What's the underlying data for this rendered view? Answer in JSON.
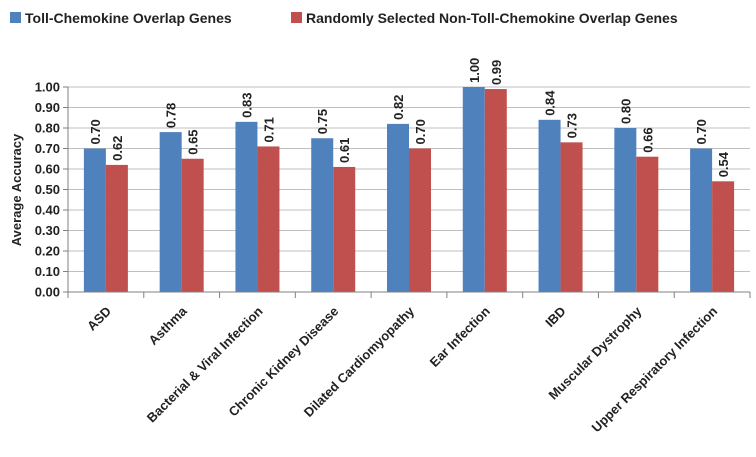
{
  "chart_data": {
    "type": "bar",
    "title": "",
    "xlabel": "",
    "ylabel": "Average Accuracy",
    "ylim": [
      0,
      1.0
    ],
    "ytick_step": 0.1,
    "grid": true,
    "legend_position": "top",
    "categories": [
      "ASD",
      "Asthma",
      "Bacterial & Viral Infection",
      "Chronic Kidney Disease",
      "Dilated Cardiomyopathy",
      "Ear Infection",
      "IBD",
      "Muscular Dystrophy",
      "Upper Respiratory Infection"
    ],
    "series": [
      {
        "name": "Toll-Chemokine Overlap Genes",
        "color": "#4f81bd",
        "values": [
          0.7,
          0.78,
          0.83,
          0.75,
          0.82,
          1.0,
          0.84,
          0.8,
          0.7
        ],
        "labels": [
          "0.70",
          "0.78",
          "0.83",
          "0.75",
          "0.82",
          "1.00",
          "0.84",
          "0.80",
          "0.70"
        ]
      },
      {
        "name": "Randomly Selected Non-Toll-Chemokine Overlap Genes",
        "color": "#c0504d",
        "values": [
          0.62,
          0.65,
          0.71,
          0.61,
          0.7,
          0.99,
          0.73,
          0.66,
          0.54
        ],
        "labels": [
          "0.62",
          "0.65",
          "0.71",
          "0.61",
          "0.70",
          "0.99",
          "0.73",
          "0.66",
          "0.54"
        ]
      }
    ]
  }
}
